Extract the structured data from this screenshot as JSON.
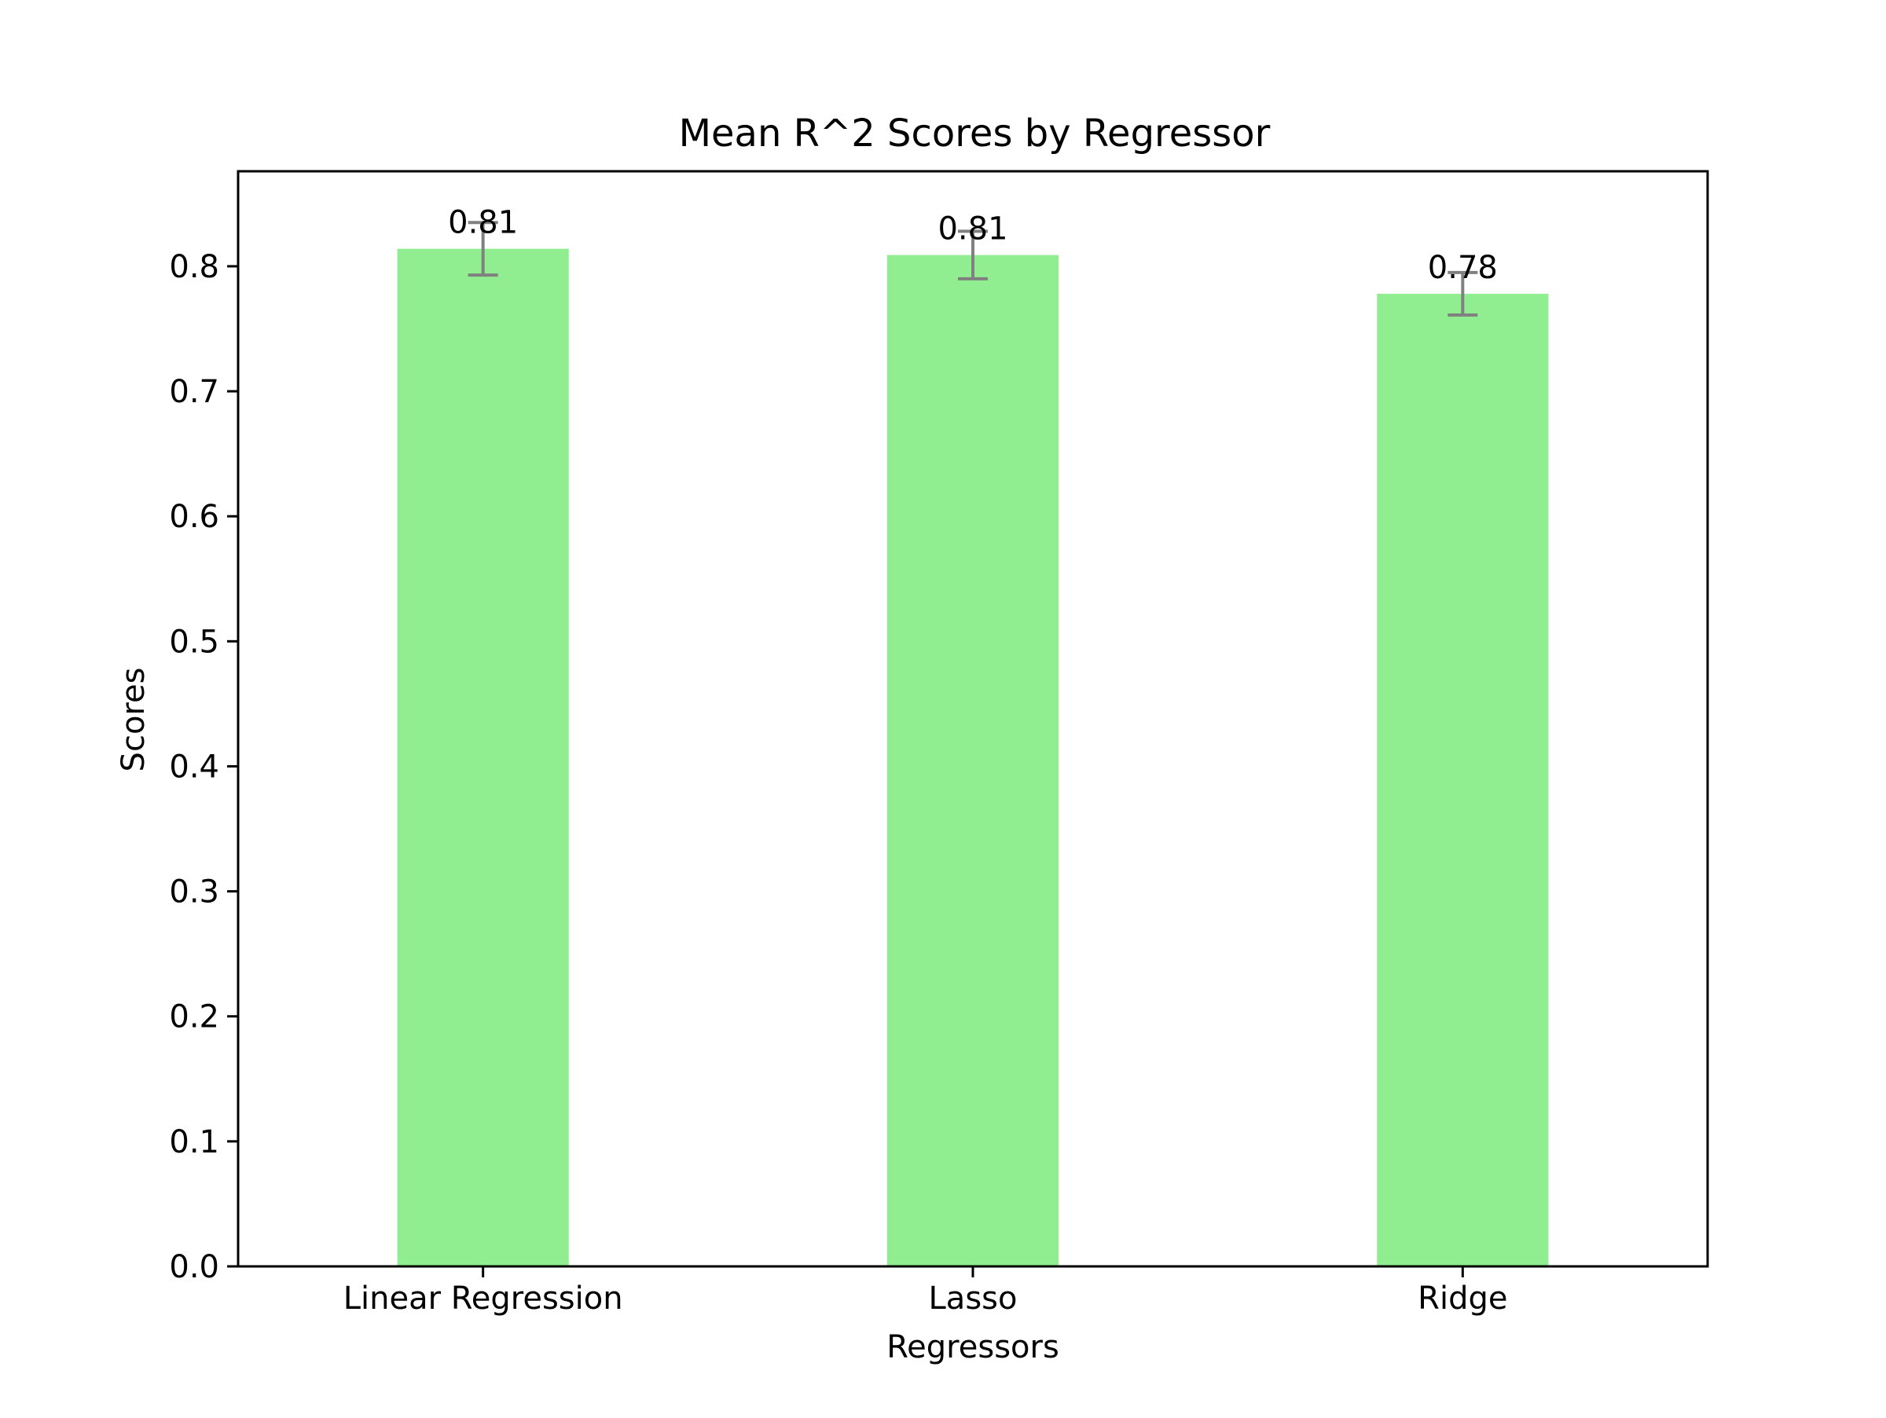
{
  "chart_data": {
    "type": "bar",
    "title": "Mean R^2 Scores by Regressor",
    "xlabel": "Regressors",
    "ylabel": "Scores",
    "categories": [
      "Linear Regression",
      "Lasso",
      "Ridge"
    ],
    "values": [
      0.814,
      0.809,
      0.778
    ],
    "errors": [
      0.021,
      0.019,
      0.017
    ],
    "value_labels": [
      "0.81",
      "0.81",
      "0.78"
    ],
    "ylim": [
      0,
      0.876
    ],
    "yticks": [
      0.0,
      0.1,
      0.2,
      0.3,
      0.4,
      0.5,
      0.6,
      0.7,
      0.8
    ],
    "ytick_labels": [
      "0.0",
      "0.1",
      "0.2",
      "0.3",
      "0.4",
      "0.5",
      "0.6",
      "0.7",
      "0.8"
    ],
    "grid": false,
    "legend": "none",
    "colors": {
      "bar": "#90ee90",
      "error_bar": "#808080",
      "axis": "#000000",
      "text": "#000000",
      "background": "#ffffff"
    }
  }
}
